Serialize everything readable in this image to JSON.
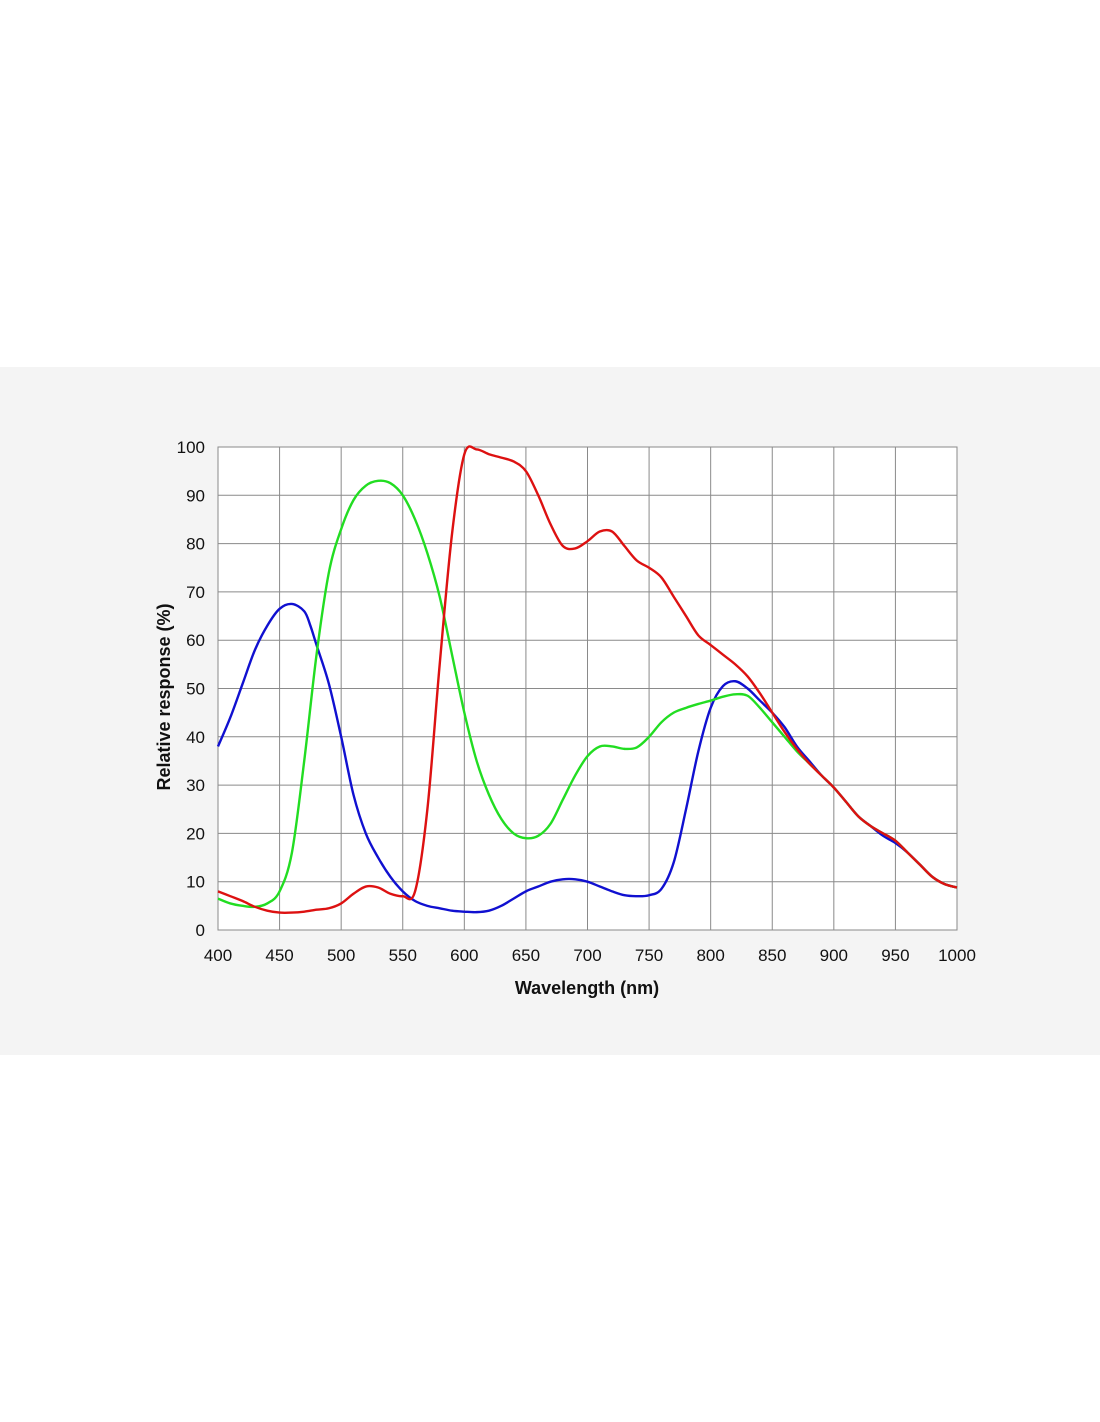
{
  "chart_data": {
    "type": "line",
    "title": "",
    "xlabel": "Wavelength (nm)",
    "ylabel": "Relative response (%)",
    "xlim": [
      400,
      1000
    ],
    "ylim": [
      0,
      100
    ],
    "x_ticks": [
      400,
      450,
      500,
      550,
      600,
      650,
      700,
      750,
      800,
      850,
      900,
      950,
      1000
    ],
    "y_ticks": [
      0,
      10,
      20,
      30,
      40,
      50,
      60,
      70,
      80,
      90,
      100
    ],
    "grid": true,
    "legend": "none",
    "series": [
      {
        "color": "#1010d0",
        "points": [
          [
            400,
            38
          ],
          [
            410,
            44
          ],
          [
            420,
            51
          ],
          [
            430,
            58
          ],
          [
            440,
            63
          ],
          [
            450,
            66.5
          ],
          [
            460,
            67.5
          ],
          [
            470,
            66
          ],
          [
            475,
            63
          ],
          [
            480,
            59
          ],
          [
            490,
            51
          ],
          [
            500,
            40
          ],
          [
            510,
            28
          ],
          [
            520,
            20
          ],
          [
            530,
            15
          ],
          [
            540,
            11
          ],
          [
            550,
            8
          ],
          [
            560,
            6
          ],
          [
            570,
            5
          ],
          [
            580,
            4.5
          ],
          [
            590,
            4
          ],
          [
            600,
            3.8
          ],
          [
            610,
            3.7
          ],
          [
            620,
            4
          ],
          [
            630,
            5
          ],
          [
            640,
            6.5
          ],
          [
            650,
            8
          ],
          [
            660,
            9
          ],
          [
            670,
            10
          ],
          [
            680,
            10.5
          ],
          [
            690,
            10.5
          ],
          [
            700,
            10
          ],
          [
            710,
            9
          ],
          [
            720,
            8
          ],
          [
            730,
            7.2
          ],
          [
            740,
            7
          ],
          [
            750,
            7.2
          ],
          [
            760,
            8.5
          ],
          [
            770,
            14
          ],
          [
            780,
            25
          ],
          [
            790,
            37
          ],
          [
            800,
            46
          ],
          [
            810,
            50.5
          ],
          [
            820,
            51.5
          ],
          [
            830,
            50
          ],
          [
            840,
            47.5
          ],
          [
            850,
            45
          ],
          [
            860,
            42
          ],
          [
            870,
            38
          ],
          [
            880,
            35
          ],
          [
            890,
            32
          ],
          [
            900,
            29.5
          ],
          [
            910,
            26.5
          ],
          [
            920,
            23.5
          ],
          [
            930,
            21.5
          ],
          [
            940,
            19.5
          ],
          [
            950,
            18
          ],
          [
            960,
            16
          ],
          [
            970,
            13.5
          ],
          [
            980,
            11
          ],
          [
            990,
            9.5
          ],
          [
            1000,
            8.8
          ]
        ]
      },
      {
        "color": "#22dd22",
        "points": [
          [
            400,
            6.5
          ],
          [
            410,
            5.5
          ],
          [
            420,
            5
          ],
          [
            430,
            4.8
          ],
          [
            440,
            5.5
          ],
          [
            450,
            8
          ],
          [
            460,
            16
          ],
          [
            470,
            35
          ],
          [
            480,
            57
          ],
          [
            490,
            74
          ],
          [
            500,
            83
          ],
          [
            510,
            89
          ],
          [
            520,
            92
          ],
          [
            530,
            93
          ],
          [
            540,
            92.5
          ],
          [
            550,
            90
          ],
          [
            560,
            85
          ],
          [
            570,
            78
          ],
          [
            580,
            69
          ],
          [
            590,
            57
          ],
          [
            600,
            45
          ],
          [
            610,
            35
          ],
          [
            620,
            28
          ],
          [
            630,
            23
          ],
          [
            640,
            20
          ],
          [
            650,
            19
          ],
          [
            660,
            19.5
          ],
          [
            670,
            22
          ],
          [
            680,
            27
          ],
          [
            690,
            32
          ],
          [
            700,
            36
          ],
          [
            710,
            38
          ],
          [
            720,
            38
          ],
          [
            730,
            37.5
          ],
          [
            740,
            37.8
          ],
          [
            750,
            40
          ],
          [
            760,
            43
          ],
          [
            770,
            45
          ],
          [
            780,
            46
          ],
          [
            790,
            46.8
          ],
          [
            800,
            47.5
          ],
          [
            810,
            48.3
          ],
          [
            820,
            48.8
          ],
          [
            830,
            48.5
          ],
          [
            840,
            46
          ],
          [
            850,
            43
          ],
          [
            860,
            40
          ],
          [
            870,
            37
          ],
          [
            880,
            34.5
          ],
          [
            890,
            32
          ],
          [
            900,
            29.5
          ],
          [
            910,
            26.5
          ],
          [
            920,
            23.5
          ],
          [
            930,
            21.5
          ],
          [
            940,
            20
          ],
          [
            950,
            18.5
          ],
          [
            960,
            16
          ],
          [
            970,
            13.5
          ],
          [
            980,
            11
          ],
          [
            990,
            9.5
          ],
          [
            1000,
            8.8
          ]
        ]
      },
      {
        "color": "#dd1111",
        "points": [
          [
            400,
            8
          ],
          [
            410,
            7
          ],
          [
            420,
            6
          ],
          [
            430,
            4.8
          ],
          [
            440,
            4
          ],
          [
            450,
            3.6
          ],
          [
            460,
            3.6
          ],
          [
            470,
            3.8
          ],
          [
            480,
            4.2
          ],
          [
            490,
            4.5
          ],
          [
            500,
            5.5
          ],
          [
            510,
            7.5
          ],
          [
            520,
            9
          ],
          [
            530,
            8.8
          ],
          [
            540,
            7.5
          ],
          [
            550,
            7
          ],
          [
            560,
            8
          ],
          [
            570,
            25
          ],
          [
            580,
            55
          ],
          [
            590,
            82
          ],
          [
            600,
            98.5
          ],
          [
            610,
            99.5
          ],
          [
            620,
            98.5
          ],
          [
            630,
            97.8
          ],
          [
            640,
            97
          ],
          [
            650,
            95
          ],
          [
            660,
            90
          ],
          [
            670,
            84
          ],
          [
            680,
            79.5
          ],
          [
            690,
            79
          ],
          [
            700,
            80.5
          ],
          [
            710,
            82.5
          ],
          [
            720,
            82.5
          ],
          [
            730,
            79.5
          ],
          [
            740,
            76.5
          ],
          [
            750,
            75
          ],
          [
            760,
            73
          ],
          [
            770,
            69
          ],
          [
            780,
            65
          ],
          [
            790,
            61
          ],
          [
            800,
            59
          ],
          [
            810,
            57
          ],
          [
            820,
            55
          ],
          [
            830,
            52.5
          ],
          [
            840,
            49
          ],
          [
            850,
            45
          ],
          [
            860,
            41
          ],
          [
            870,
            37.5
          ],
          [
            880,
            34.5
          ],
          [
            890,
            32
          ],
          [
            900,
            29.5
          ],
          [
            910,
            26.5
          ],
          [
            920,
            23.5
          ],
          [
            930,
            21.5
          ],
          [
            940,
            20
          ],
          [
            950,
            18.5
          ],
          [
            960,
            16
          ],
          [
            970,
            13.5
          ],
          [
            980,
            11
          ],
          [
            990,
            9.5
          ],
          [
            1000,
            8.8
          ]
        ]
      }
    ]
  }
}
